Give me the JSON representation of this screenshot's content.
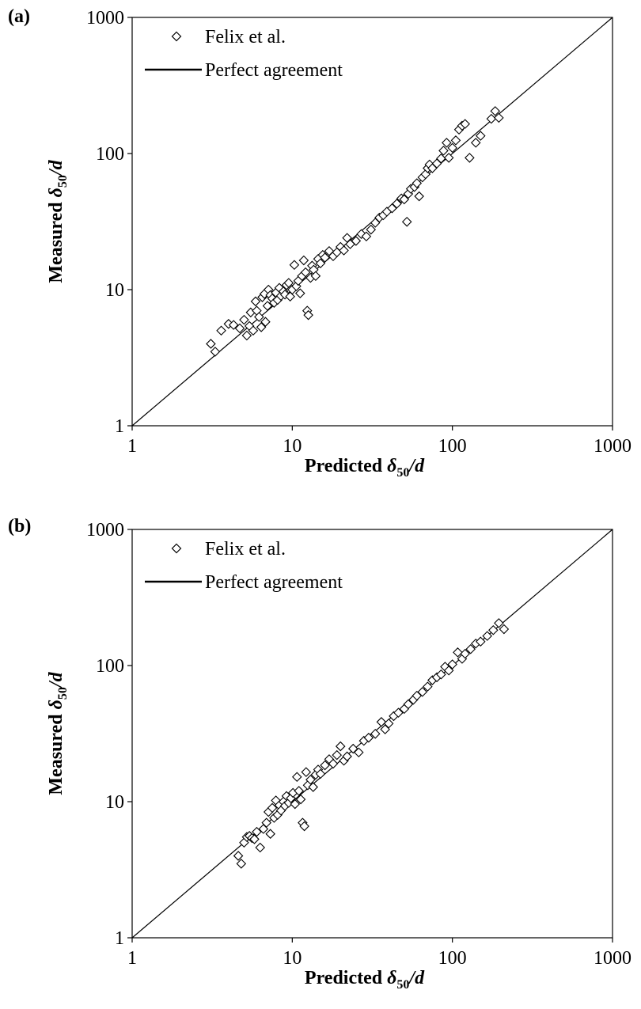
{
  "figure": {
    "panels": [
      {
        "label": "(a)"
      },
      {
        "label": "(b)"
      }
    ]
  },
  "chart_data": [
    {
      "type": "scatter",
      "panel_label": "(a)",
      "xscale": "log",
      "yscale": "log",
      "xlim": [
        1,
        1000
      ],
      "ylim": [
        1,
        1000
      ],
      "xticks": [
        "1",
        "10",
        "100",
        "1000"
      ],
      "yticks": [
        "1",
        "10",
        "100",
        "1000"
      ],
      "xlabel": {
        "main": "Predicted ",
        "symbol": "δ",
        "sub": "50",
        "tail": "/d"
      },
      "ylabel": {
        "main": "Measured ",
        "symbol": "δ",
        "sub": "50",
        "tail": "/d"
      },
      "legend": {
        "position": "top-left",
        "entries": [
          "Felix et al.",
          "Perfect agreement"
        ]
      },
      "grid": false,
      "series": [
        {
          "name": "Felix et al.",
          "marker": "diamond",
          "points": [
            [
              3.1,
              4.0
            ],
            [
              3.3,
              3.5
            ],
            [
              3.6,
              5.0
            ],
            [
              4.0,
              5.6
            ],
            [
              4.3,
              5.5
            ],
            [
              4.7,
              5.2
            ],
            [
              5.0,
              6.0
            ],
            [
              5.2,
              4.6
            ],
            [
              5.4,
              5.4
            ],
            [
              5.5,
              6.8
            ],
            [
              5.7,
              5.0
            ],
            [
              5.9,
              8.2
            ],
            [
              6.0,
              7.0
            ],
            [
              6.2,
              6.3
            ],
            [
              6.4,
              5.3
            ],
            [
              6.5,
              8.8
            ],
            [
              6.7,
              9.3
            ],
            [
              6.8,
              5.8
            ],
            [
              7.0,
              7.6
            ],
            [
              7.1,
              10.0
            ],
            [
              7.3,
              9.1
            ],
            [
              7.5,
              8.6
            ],
            [
              7.7,
              8.0
            ],
            [
              7.9,
              9.5
            ],
            [
              8.1,
              8.4
            ],
            [
              8.3,
              10.3
            ],
            [
              8.5,
              9.0
            ],
            [
              8.8,
              9.7
            ],
            [
              9.0,
              9.2
            ],
            [
              9.2,
              10.8
            ],
            [
              9.5,
              11.2
            ],
            [
              9.7,
              8.9
            ],
            [
              10.0,
              10.0
            ],
            [
              10.3,
              15.2
            ],
            [
              10.6,
              10.6
            ],
            [
              10.9,
              11.6
            ],
            [
              11.2,
              9.4
            ],
            [
              11.5,
              12.6
            ],
            [
              11.8,
              16.4
            ],
            [
              12.1,
              13.4
            ],
            [
              12.4,
              7.0
            ],
            [
              12.6,
              6.5
            ],
            [
              13.0,
              12.2
            ],
            [
              13.3,
              15.0
            ],
            [
              13.6,
              14.0
            ],
            [
              14.0,
              12.6
            ],
            [
              14.5,
              16.8
            ],
            [
              15.0,
              15.6
            ],
            [
              15.5,
              18.0
            ],
            [
              16.0,
              17.2
            ],
            [
              17.0,
              19.2
            ],
            [
              18.0,
              17.6
            ],
            [
              19.0,
              18.8
            ],
            [
              20.0,
              20.6
            ],
            [
              21.0,
              19.4
            ],
            [
              22.0,
              24.0
            ],
            [
              23.0,
              21.6
            ],
            [
              25.0,
              22.8
            ],
            [
              27.0,
              25.6
            ],
            [
              29.0,
              24.6
            ],
            [
              31.0,
              27.6
            ],
            [
              33.0,
              31.0
            ],
            [
              35.0,
              33.8
            ],
            [
              37.0,
              35.2
            ],
            [
              39.0,
              37.4
            ],
            [
              42.0,
              39.6
            ],
            [
              45.0,
              42.8
            ],
            [
              48.0,
              46.8
            ],
            [
              50.0,
              46.0
            ],
            [
              52.0,
              31.5
            ],
            [
              53.0,
              50.5
            ],
            [
              55.0,
              55.0
            ],
            [
              58.0,
              56.8
            ],
            [
              60.0,
              60.5
            ],
            [
              62.0,
              48.5
            ],
            [
              65.0,
              66.8
            ],
            [
              68.0,
              70.5
            ],
            [
              70.0,
              78.0
            ],
            [
              72.0,
              83.0
            ],
            [
              75.0,
              78.0
            ],
            [
              80.0,
              84.5
            ],
            [
              85.0,
              92.0
            ],
            [
              88.0,
              105.0
            ],
            [
              92.0,
              120.0
            ],
            [
              95.0,
              93.0
            ],
            [
              100.0,
              110.0
            ],
            [
              105.0,
              125.0
            ],
            [
              110.0,
              150.0
            ],
            [
              115.0,
              160.0
            ],
            [
              120.0,
              165.0
            ],
            [
              128.0,
              93.0
            ],
            [
              140.0,
              120.0
            ],
            [
              150.0,
              135.0
            ],
            [
              175.0,
              180.0
            ],
            [
              185.0,
              205.0
            ],
            [
              195.0,
              183.0
            ]
          ]
        }
      ]
    },
    {
      "type": "scatter",
      "panel_label": "(b)",
      "xscale": "log",
      "yscale": "log",
      "xlim": [
        1,
        1000
      ],
      "ylim": [
        1,
        1000
      ],
      "xticks": [
        "1",
        "10",
        "100",
        "1000"
      ],
      "yticks": [
        "1",
        "10",
        "100",
        "1000"
      ],
      "xlabel": {
        "main": "Predicted ",
        "symbol": "δ",
        "sub": "50",
        "tail": "/d"
      },
      "ylabel": {
        "main": "Measured ",
        "symbol": "δ",
        "sub": "50",
        "tail": "/d"
      },
      "legend": {
        "position": "top-left",
        "entries": [
          "Felix et al.",
          "Perfect agreement"
        ]
      },
      "grid": false,
      "series": [
        {
          "name": "Felix et al.",
          "marker": "diamond",
          "points": [
            [
              4.6,
              4.0
            ],
            [
              4.8,
              3.5
            ],
            [
              5.0,
              5.0
            ],
            [
              5.2,
              5.5
            ],
            [
              5.4,
              5.6
            ],
            [
              5.6,
              5.4
            ],
            [
              5.8,
              5.3
            ],
            [
              6.0,
              6.0
            ],
            [
              6.3,
              4.6
            ],
            [
              6.6,
              6.3
            ],
            [
              6.9,
              7.0
            ],
            [
              7.1,
              8.4
            ],
            [
              7.3,
              5.8
            ],
            [
              7.5,
              9.0
            ],
            [
              7.7,
              7.6
            ],
            [
              7.9,
              10.2
            ],
            [
              8.1,
              8.0
            ],
            [
              8.3,
              9.4
            ],
            [
              8.5,
              8.6
            ],
            [
              8.8,
              10.0
            ],
            [
              9.0,
              9.3
            ],
            [
              9.2,
              11.0
            ],
            [
              9.5,
              9.8
            ],
            [
              9.8,
              10.6
            ],
            [
              10.1,
              11.6
            ],
            [
              10.4,
              9.6
            ],
            [
              10.7,
              15.2
            ],
            [
              11.0,
              12.0
            ],
            [
              11.3,
              10.4
            ],
            [
              11.6,
              7.0
            ],
            [
              11.9,
              6.6
            ],
            [
              12.2,
              16.5
            ],
            [
              12.5,
              13.2
            ],
            [
              13.0,
              14.5
            ],
            [
              13.5,
              12.8
            ],
            [
              14.0,
              15.8
            ],
            [
              14.5,
              17.2
            ],
            [
              15.0,
              16.0
            ],
            [
              16.0,
              18.5
            ],
            [
              17.0,
              20.5
            ],
            [
              18.0,
              19.0
            ],
            [
              19.0,
              22.0
            ],
            [
              20.0,
              25.5
            ],
            [
              21.0,
              20.0
            ],
            [
              22.0,
              21.5
            ],
            [
              24.0,
              24.5
            ],
            [
              26.0,
              23.0
            ],
            [
              28.0,
              28.0
            ],
            [
              30.0,
              29.5
            ],
            [
              33.0,
              31.5
            ],
            [
              36.0,
              38.5
            ],
            [
              38.0,
              34.0
            ],
            [
              40.0,
              37.5
            ],
            [
              43.0,
              42.5
            ],
            [
              46.0,
              45.0
            ],
            [
              50.0,
              48.0
            ],
            [
              53.0,
              52.0
            ],
            [
              57.0,
              56.0
            ],
            [
              60.0,
              60.0
            ],
            [
              65.0,
              64.0
            ],
            [
              70.0,
              70.0
            ],
            [
              75.0,
              78.0
            ],
            [
              80.0,
              82.0
            ],
            [
              85.0,
              86.0
            ],
            [
              90.0,
              98.0
            ],
            [
              95.0,
              92.0
            ],
            [
              100.0,
              102.0
            ],
            [
              108.0,
              125.0
            ],
            [
              115.0,
              112.0
            ],
            [
              120.0,
              122.0
            ],
            [
              130.0,
              132.0
            ],
            [
              140.0,
              145.0
            ],
            [
              150.0,
              150.0
            ],
            [
              165.0,
              165.0
            ],
            [
              180.0,
              182.0
            ],
            [
              195.0,
              205.0
            ],
            [
              210.0,
              185.0
            ]
          ]
        }
      ]
    }
  ]
}
